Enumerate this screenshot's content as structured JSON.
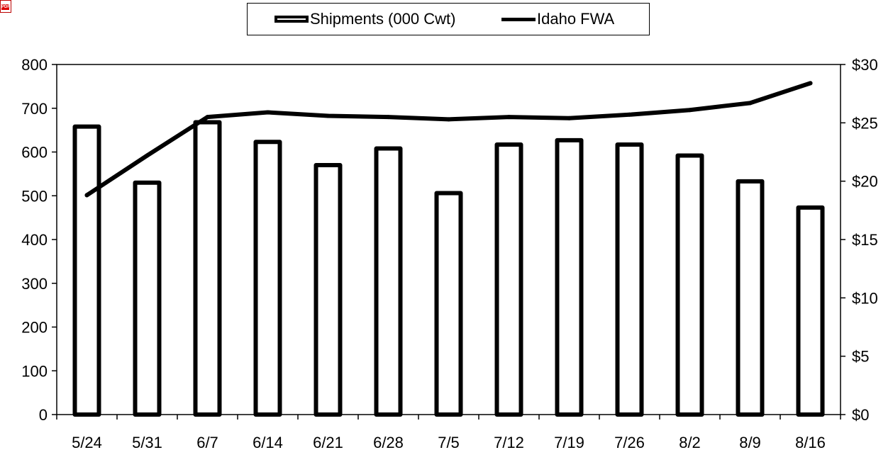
{
  "chart_data": {
    "type": "bar",
    "categories": [
      "5/24",
      "5/31",
      "6/7",
      "6/14",
      "6/21",
      "6/28",
      "7/5",
      "7/12",
      "7/19",
      "7/26",
      "8/2",
      "8/9",
      "8/16"
    ],
    "series": [
      {
        "name": "Shipments (000 Cwt)",
        "type": "bar",
        "axis": "left",
        "values": [
          658,
          530,
          668,
          623,
          570,
          608,
          506,
          617,
          627,
          617,
          592,
          533,
          473
        ]
      },
      {
        "name": "Idaho FWA",
        "type": "line",
        "axis": "right",
        "values": [
          18.8,
          22.2,
          25.5,
          25.9,
          25.6,
          25.5,
          25.3,
          25.5,
          25.4,
          25.7,
          26.1,
          26.7,
          28.4
        ]
      }
    ],
    "y_left": {
      "ylim": [
        0,
        800
      ],
      "ticks": [
        0,
        100,
        200,
        300,
        400,
        500,
        600,
        700,
        800
      ]
    },
    "y_right": {
      "ylim": [
        0,
        30
      ],
      "ticks": [
        0,
        5,
        10,
        15,
        20,
        25,
        30
      ],
      "tick_labels": [
        "$0",
        "$5",
        "$10",
        "$15",
        "$20",
        "$25",
        "$30"
      ]
    },
    "xlabel": "",
    "ylabel": "",
    "title": "",
    "grid": false,
    "legend_position": "top-center"
  },
  "legend": {
    "bar_label": "Shipments (000 Cwt)",
    "line_label": "Idaho FWA"
  },
  "icons": {
    "corner": "pdf-icon",
    "corner_text": "PDF"
  }
}
